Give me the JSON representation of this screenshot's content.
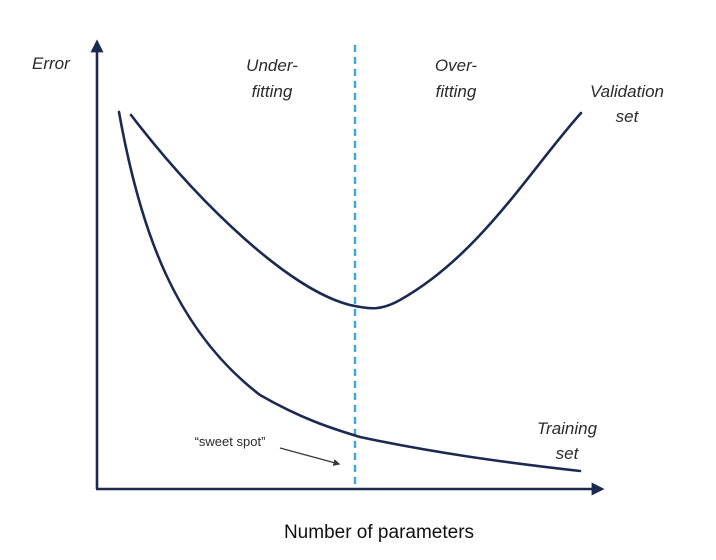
{
  "diagram": {
    "y_axis_label": "Error",
    "x_axis_label": "Number of parameters",
    "region_left": {
      "line1": "Under-",
      "line2": "fitting"
    },
    "region_right": {
      "line1": "Over-",
      "line2": "fitting"
    },
    "validation_label": {
      "line1": "Validation",
      "line2": "set"
    },
    "training_label": {
      "line1": "Training",
      "line2": "set"
    },
    "sweet_spot_label": "“sweet spot”"
  },
  "colors": {
    "curve": "#1c2a52",
    "axis": "#1c2a52",
    "divider": "#3ba8d8",
    "text": "#2b2b2b"
  }
}
